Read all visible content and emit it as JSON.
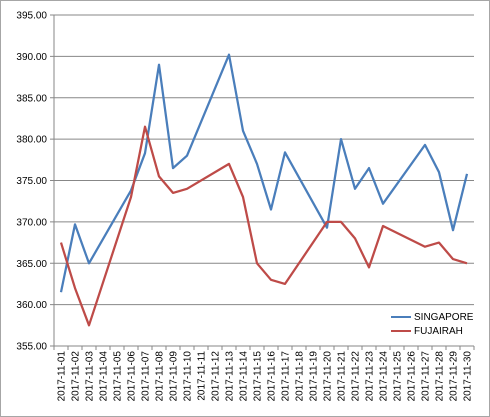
{
  "chart_data": {
    "type": "line",
    "title": "",
    "xlabel": "",
    "ylabel": "",
    "ylim": [
      355,
      395
    ],
    "y_ticks": [
      "355.00",
      "360.00",
      "365.00",
      "370.00",
      "375.00",
      "380.00",
      "385.00",
      "390.00",
      "395.00"
    ],
    "categories": [
      "2017-11-01",
      "2017-11-02",
      "2017-11-03",
      "2017-11-06",
      "2017-11-07",
      "2017-11-08",
      "2017-11-09",
      "2017-11-10",
      "2017-11-13",
      "2017-11-14",
      "2017-11-15",
      "2017-11-16",
      "2017-11-17",
      "2017-11-20",
      "2017-11-21",
      "2017-11-22",
      "2017-11-23",
      "2017-11-24",
      "2017-11-27",
      "2017-11-28",
      "2017-11-29",
      "2017-11-30"
    ],
    "axis_labels": [
      "2017-11-01",
      "2017-11-02",
      "2017-11-03",
      "2017-11-04",
      "2017-11-05",
      "2017-11-06",
      "2017-11-07",
      "2017-11-08",
      "2017-11-09",
      "2017-11-10",
      "2017-11-11",
      "2017-11-12",
      "2017-11-13",
      "2017-11-14",
      "2017-11-15",
      "2017-11-16",
      "2017-11-17",
      "2017-11-18",
      "2017-11-19",
      "2017-11-20",
      "2017-11-21",
      "2017-11-22",
      "2017-11-23",
      "2017-11-24",
      "2017-11-25",
      "2017-11-26",
      "2017-11-27",
      "2017-11-28",
      "2017-11-29",
      "2017-11-30"
    ],
    "series": [
      {
        "name": "SINGAPORE",
        "color": "#4a7ebb",
        "values": [
          361.5,
          369.7,
          365.0,
          373.8,
          378.3,
          389.0,
          376.5,
          378.0,
          390.2,
          381.0,
          377.0,
          371.5,
          378.4,
          369.3,
          380.0,
          374.0,
          376.5,
          372.2,
          379.3,
          376.0,
          369.0,
          375.8
        ]
      },
      {
        "name": "FUJAIRAH",
        "color": "#be4b48",
        "values": [
          367.5,
          362.0,
          357.5,
          373.0,
          381.5,
          375.5,
          373.5,
          374.0,
          377.0,
          373.0,
          365.0,
          363.0,
          362.5,
          370.0,
          370.0,
          368.0,
          364.5,
          369.5,
          367.0,
          367.5,
          365.5,
          365.0
        ]
      }
    ],
    "grid": "horizontal",
    "legend_position": "bottom-right"
  }
}
